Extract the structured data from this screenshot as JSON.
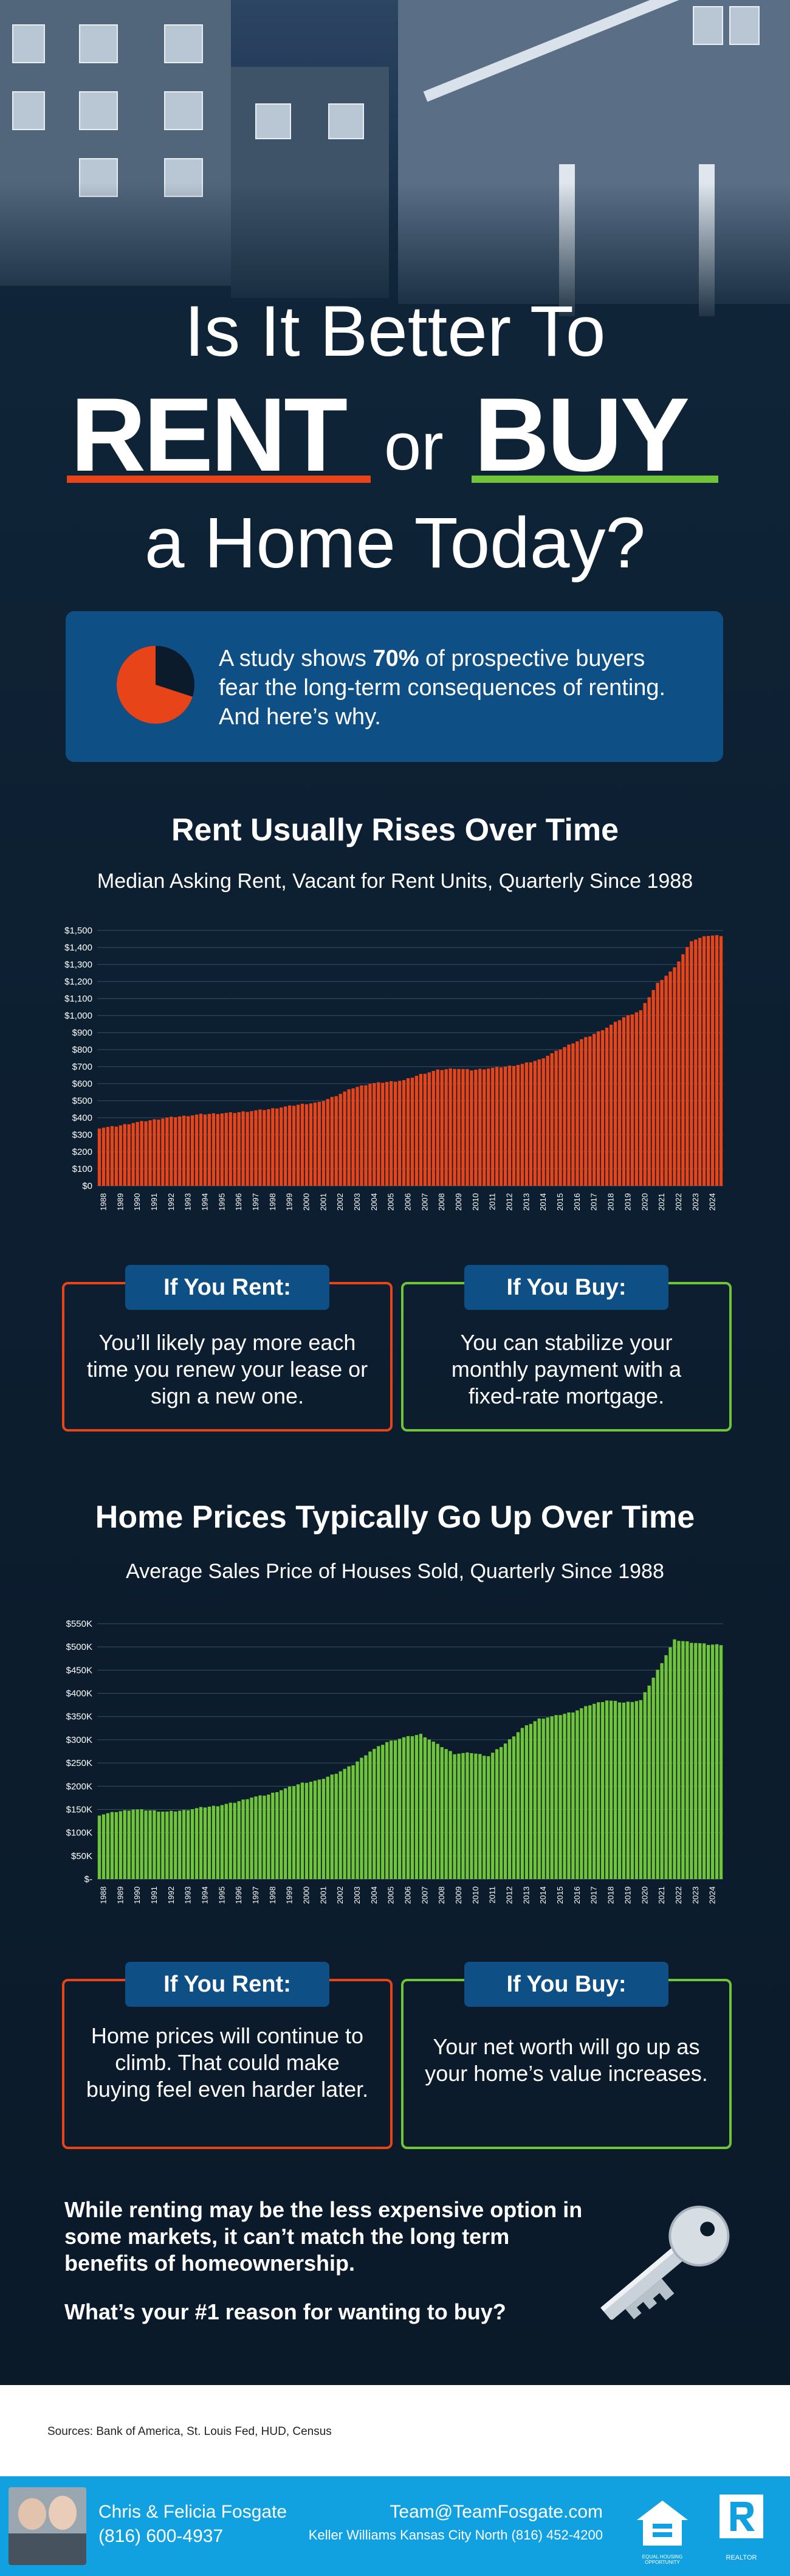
{
  "hero": {
    "line1": "Is It Better To",
    "rent": "RENT",
    "or": "or",
    "buy": "BUY",
    "line3": "a Home Today?"
  },
  "study": {
    "pre": "A study shows ",
    "percent": "70%",
    "post": " of prospective buyers fear the long-term consequences of renting. And here’s why.",
    "pie_fraction": 0.7
  },
  "rent_section": {
    "title": "Rent Usually Rises Over Time",
    "subtitle": "Median Asking Rent, Vacant for Rent Units, Quarterly Since 1988"
  },
  "price_section": {
    "title": "Home Prices Typically Go Up Over Time",
    "subtitle": "Average Sales Price of Houses Sold, Quarterly Since 1988"
  },
  "compare1": {
    "rent_head": "If You Rent:",
    "rent_body": "You’ll likely pay more each time you renew your lease or sign a new one.",
    "buy_head": "If You Buy:",
    "buy_body": "You can stabilize your monthly payment with a fixed-rate mortgage."
  },
  "compare2": {
    "rent_head": "If You Rent:",
    "rent_body": "Home prices will continue to climb. That could make buying feel even harder later.",
    "buy_head": "If You Buy:",
    "buy_body": "Your net worth will go up as your home’s value increases."
  },
  "closing": {
    "paragraph": "While renting may be the less expensive option in some markets, it can’t match the long term benefits of homeownership.",
    "question": "What’s your #1 reason for wanting to buy?"
  },
  "sources": "Sources: Bank of America, St. Louis Fed, HUD, Census",
  "footer": {
    "names": "Chris & Felicia Fosgate",
    "phone": "(816) 600-4937",
    "email": "Team@TeamFosgate.com",
    "office": "Keller Williams Kansas City North (816) 452-4200",
    "eho_label": "EQUAL HOUSING OPPORTUNITY",
    "realtor_label": "REALTOR"
  },
  "colors": {
    "rent_bar": "#e8441a",
    "price_bar": "#6fc43a",
    "accent_blue": "#0e4f86",
    "footer_blue": "#12a1e0"
  },
  "icons": {
    "pie": "pie-chart-icon",
    "key": "house-key-icon",
    "eho": "equal-housing-icon",
    "realtor": "realtor-r-icon"
  },
  "chart_data": [
    {
      "type": "bar",
      "id": "rent",
      "title": "Rent Usually Rises Over Time",
      "subtitle": "Median Asking Rent, Vacant for Rent Units, Quarterly Since 1988",
      "ylim": [
        0,
        1500
      ],
      "yticks": [
        "$0",
        "$100",
        "$200",
        "$300",
        "$400",
        "$500",
        "$600",
        "$700",
        "$800",
        "$900",
        "$1,000",
        "$1,100",
        "$1,200",
        "$1,300",
        "$1,400",
        "$1,500"
      ],
      "x": [
        "1988",
        "1989",
        "1990",
        "1991",
        "1992",
        "1993",
        "1994",
        "1995",
        "1996",
        "1997",
        "1998",
        "1999",
        "2000",
        "2001",
        "2002",
        "2003",
        "2004",
        "2005",
        "2006",
        "2007",
        "2008",
        "2009",
        "2010",
        "2011",
        "2012",
        "2013",
        "2014",
        "2015",
        "2016",
        "2017",
        "2018",
        "2019",
        "2020",
        "2021",
        "2022",
        "2023",
        "2024"
      ],
      "annual": [
        340,
        350,
        370,
        385,
        400,
        410,
        420,
        425,
        430,
        440,
        450,
        465,
        480,
        490,
        530,
        575,
        600,
        610,
        620,
        655,
        680,
        690,
        680,
        690,
        700,
        715,
        740,
        790,
        840,
        880,
        930,
        990,
        1030,
        1190,
        1280,
        1440,
        1470
      ],
      "grid": true
    },
    {
      "type": "bar",
      "id": "price",
      "title": "Home Prices Typically Go Up Over Time",
      "subtitle": "Average Sales Price of Houses Sold, Quarterly Since 1988",
      "ylim": [
        0,
        550
      ],
      "yticks": [
        "$-",
        "$50K",
        "$100K",
        "$150K",
        "$200K",
        "$250K",
        "$300K",
        "$350K",
        "$400K",
        "$450K",
        "$500K",
        "$550K"
      ],
      "x": [
        "1988",
        "1989",
        "1990",
        "1991",
        "1992",
        "1993",
        "1994",
        "1995",
        "1996",
        "1997",
        "1998",
        "1999",
        "2000",
        "2001",
        "2002",
        "2003",
        "2004",
        "2005",
        "2006",
        "2007",
        "2008",
        "2009",
        "2010",
        "2011",
        "2012",
        "2013",
        "2014",
        "2015",
        "2016",
        "2017",
        "2018",
        "2019",
        "2020",
        "2021",
        "2022",
        "2023",
        "2024"
      ],
      "annual": [
        138,
        145,
        150,
        148,
        145,
        148,
        154,
        158,
        165,
        176,
        182,
        195,
        207,
        213,
        228,
        246,
        275,
        295,
        305,
        312,
        290,
        270,
        272,
        265,
        292,
        325,
        345,
        352,
        360,
        375,
        385,
        380,
        385,
        450,
        515,
        510,
        505
      ],
      "grid": true
    }
  ]
}
